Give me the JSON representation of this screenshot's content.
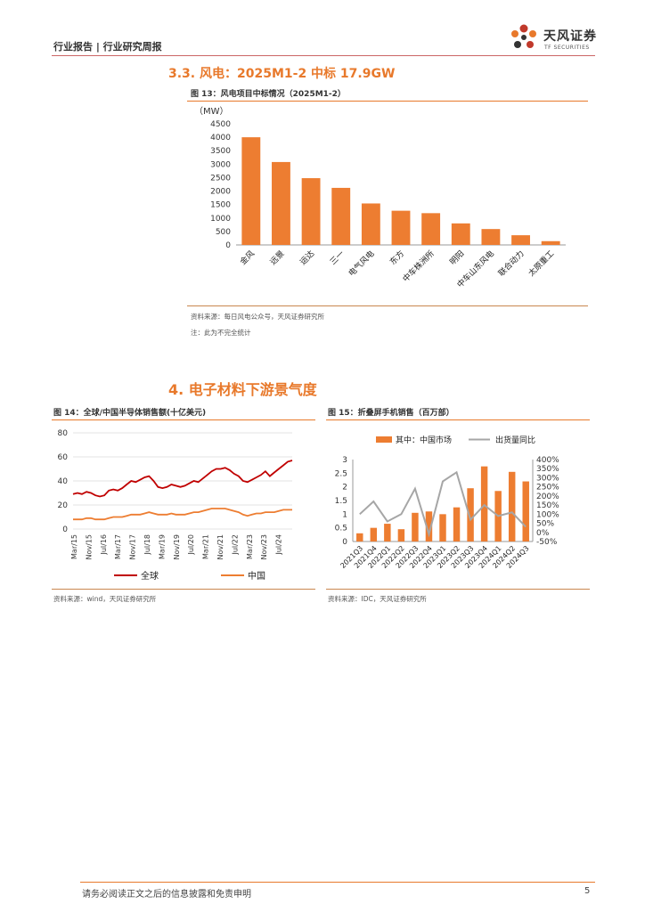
{
  "header": {
    "report_type": "行业报告 | 行业研究周报",
    "brand_cn": "天风证券",
    "brand_en": "TF SECURITIES"
  },
  "section_33": {
    "title": "3.3. 风电：2025M1-2 中标 17.9GW",
    "figure_caption": "图 13：风电项目中标情况（2025M1-2）",
    "source": "资料来源：每日风电公众号，天风证券研究所",
    "note": "注：此为不完全统计"
  },
  "section_4": {
    "title": "4. 电子材料下游景气度"
  },
  "figure_14": {
    "caption": "图 14：全球/中国半导体销售额(十亿美元)",
    "source": "资料来源：wind，天风证券研究所"
  },
  "figure_15": {
    "caption": "图 15：折叠屏手机销售（百万部）",
    "source": "资料来源：IDC，天风证券研究所"
  },
  "footer": {
    "disclaimer": "请务必阅读正文之后的信息披露和免责申明",
    "page_number": "5"
  },
  "colors": {
    "accent": "#e8792b",
    "bar": "#ed7d31",
    "line_global": "#c00000",
    "line_china": "#ed7d31",
    "line_yoy": "#a6a6a6"
  },
  "chart_data": [
    {
      "id": "wind",
      "type": "bar",
      "ylabel": "（MW）",
      "ylim": [
        0,
        4500
      ],
      "yticks": [
        "4500",
        "4000",
        "3500",
        "3000",
        "2500",
        "2000",
        "1500",
        "1000",
        "500",
        "0"
      ],
      "categories": [
        "金风",
        "远景",
        "运达",
        "三一",
        "电气风电",
        "东方",
        "中车株洲所",
        "明阳",
        "中车山东风电",
        "联合动力",
        "太原重工"
      ],
      "values": [
        4000,
        3080,
        2480,
        2120,
        1540,
        1270,
        1180,
        800,
        590,
        360,
        140
      ],
      "grid": false
    },
    {
      "id": "semi",
      "type": "line",
      "ylim": [
        0,
        80
      ],
      "yticks": [
        "80",
        "60",
        "40",
        "20",
        "0"
      ],
      "xticks": [
        "Mar/15",
        "Nov/15",
        "Jul/16",
        "Mar/17",
        "Nov/17",
        "Jul/18",
        "Mar/19",
        "Nov/19",
        "Jul/20",
        "Mar/21",
        "Nov/21",
        "Jul/22",
        "Mar/23",
        "Nov/23",
        "Jul/24"
      ],
      "legend_position": "bottom",
      "series": [
        {
          "name": "全球",
          "values": [
            29,
            30,
            29,
            31,
            30,
            28,
            27,
            28,
            32,
            33,
            32,
            34,
            37,
            40,
            39,
            41,
            43,
            44,
            40,
            35,
            34,
            35,
            37,
            36,
            35,
            36,
            38,
            40,
            39,
            42,
            45,
            48,
            50,
            50,
            51,
            49,
            46,
            44,
            40,
            39,
            41,
            43,
            45,
            48,
            44,
            47,
            50,
            53,
            56,
            57
          ]
        },
        {
          "name": "中国",
          "values": [
            8,
            8,
            8,
            9,
            9,
            8,
            8,
            8,
            9,
            10,
            10,
            10,
            11,
            12,
            12,
            12,
            13,
            14,
            13,
            12,
            12,
            12,
            13,
            12,
            12,
            12,
            13,
            14,
            14,
            15,
            16,
            17,
            17,
            17,
            17,
            16,
            15,
            14,
            12,
            11,
            12,
            13,
            13,
            14,
            14,
            14,
            15,
            16,
            16,
            16
          ]
        }
      ],
      "grid": true
    },
    {
      "id": "foldable",
      "type": "bar+line",
      "categories": [
        "2021Q3",
        "2021Q4",
        "2022Q1",
        "2022Q2",
        "2022Q3",
        "2022Q4",
        "2023Q1",
        "2023Q2",
        "2023Q3",
        "2023Q4",
        "2024Q1",
        "2024Q2",
        "2024Q3"
      ],
      "yticks_left": [
        "3",
        "2.5",
        "2",
        "1.5",
        "1",
        "0.5",
        "0"
      ],
      "yticks_right": [
        "400%",
        "350%",
        "300%",
        "250%",
        "200%",
        "150%",
        "100%",
        "50%",
        "0%",
        "-50%"
      ],
      "ylim_left": [
        0,
        3
      ],
      "ylim_right": [
        -50,
        400
      ],
      "legend_position": "top",
      "series": [
        {
          "name": "其中：中国市场",
          "axis": "left",
          "values": [
            0.3,
            0.5,
            0.65,
            0.45,
            1.05,
            1.1,
            1.0,
            1.25,
            1.95,
            2.75,
            1.85,
            2.55,
            2.2
          ]
        },
        {
          "name": "出货量同比",
          "axis": "right",
          "values": [
            100,
            170,
            60,
            100,
            240,
            -10,
            280,
            330,
            70,
            150,
            90,
            110,
            30
          ]
        }
      ]
    }
  ]
}
